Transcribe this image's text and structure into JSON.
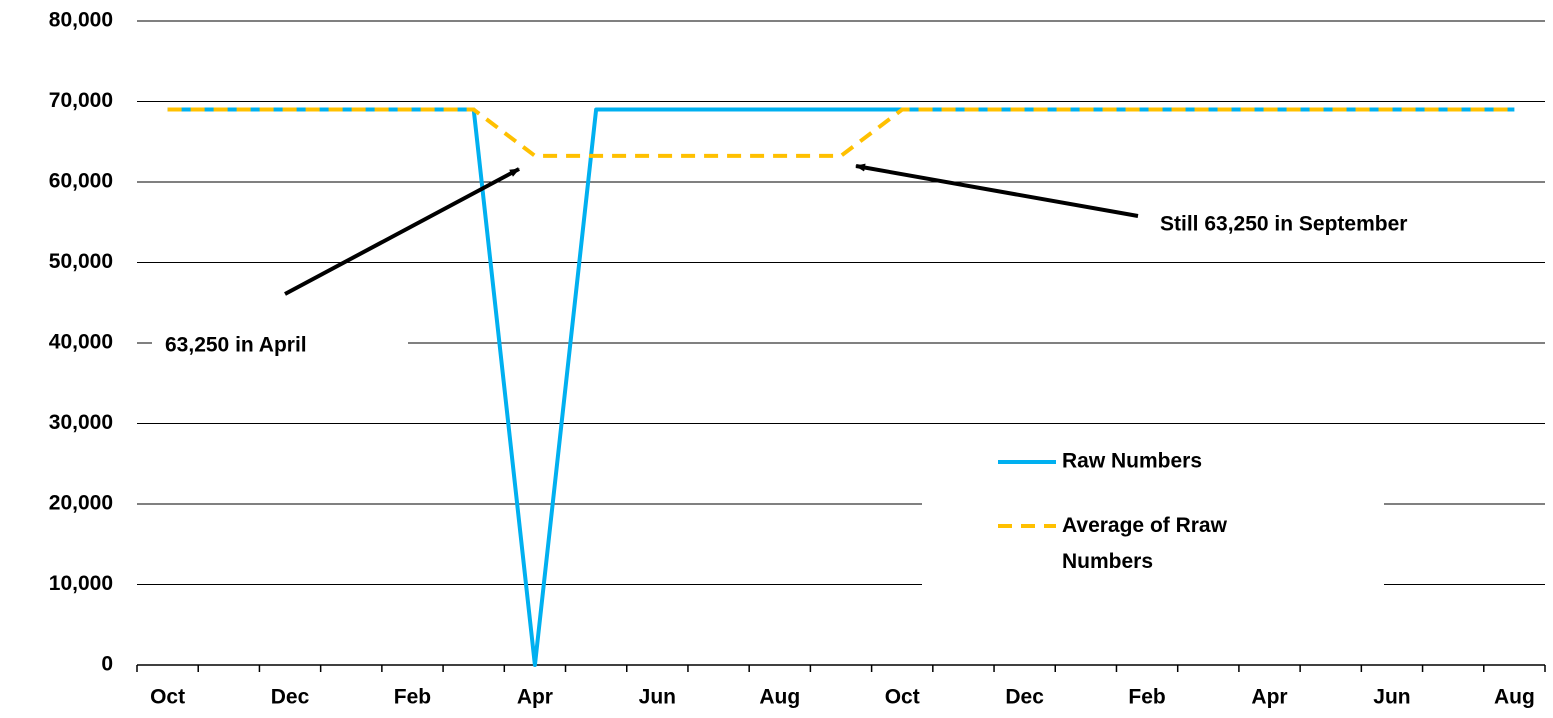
{
  "chart_data": {
    "type": "line",
    "categories": [
      "Oct",
      null,
      "Dec",
      null,
      "Feb",
      null,
      "Apr",
      null,
      "Jun",
      null,
      "Aug",
      null,
      "Oct",
      null,
      "Dec",
      null,
      "Feb",
      null,
      "Apr",
      null,
      "Jun",
      null,
      "Aug"
    ],
    "series": [
      {
        "name": "Raw Numbers",
        "color": "#00b0f0",
        "dashed": false,
        "values": [
          69000,
          69000,
          69000,
          69000,
          69000,
          69000,
          0,
          69000,
          69000,
          69000,
          69000,
          69000,
          69000,
          69000,
          69000,
          69000,
          69000,
          69000,
          69000,
          69000,
          69000,
          69000,
          69000
        ]
      },
      {
        "name": "Average of Rraw Numbers",
        "color": "#ffc000",
        "dashed": true,
        "values": [
          69000,
          69000,
          69000,
          69000,
          69000,
          69000,
          63250,
          63250,
          63250,
          63250,
          63250,
          63250,
          69000,
          69000,
          69000,
          69000,
          69000,
          69000,
          69000,
          69000,
          69000,
          69000,
          69000
        ]
      }
    ],
    "ylim": [
      0,
      80000
    ],
    "yticks": [
      0,
      {
        "value": 10000,
        "label": "10,000"
      },
      {
        "value": 20000,
        "label": "20,000"
      },
      {
        "value": 30000,
        "label": "30,000"
      },
      {
        "value": 40000,
        "label": "40,000"
      },
      {
        "value": 50000,
        "label": "50,000"
      },
      {
        "value": 60000,
        "label": "60,000"
      },
      {
        "value": 70000,
        "label": "70,000"
      },
      {
        "value": 80000,
        "label": "80,000"
      }
    ],
    "grid": true,
    "legend": "lower right",
    "annotations": [
      "63,250 in April",
      "Still 63,250 in September"
    ]
  }
}
